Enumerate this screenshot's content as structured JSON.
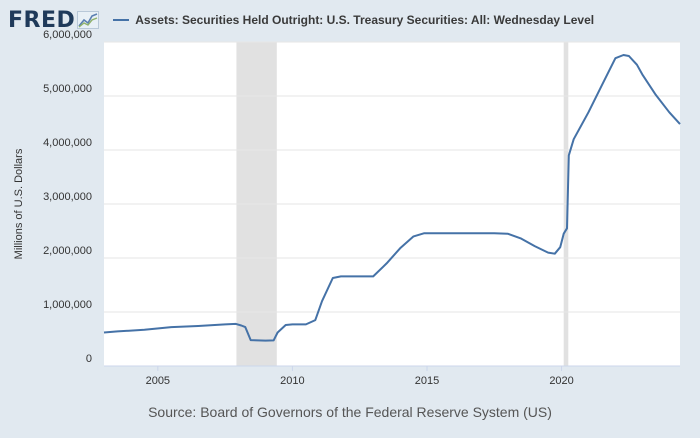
{
  "brand": {
    "name": "FRED"
  },
  "legend": {
    "label": "Assets: Securities Held Outright: U.S. Treasury Securities: All: Wednesday Level"
  },
  "source": "Source: Board of Governors of the Federal Reserve System (US)",
  "colors": {
    "line": "#4572a7",
    "recession": "#e1e1e1",
    "background": "#e1e9f0",
    "plot": "#ffffff",
    "grid": "#e6e6e6"
  },
  "chart_data": {
    "type": "line",
    "title": "Assets: Securities Held Outright: U.S. Treasury Securities: All: Wednesday Level",
    "xlabel": "",
    "ylabel": "Millions of U.S. Dollars",
    "xlim": [
      2003.0,
      2024.4
    ],
    "ylim": [
      0,
      6000000
    ],
    "y_ticks": [
      0,
      1000000,
      2000000,
      3000000,
      4000000,
      5000000,
      6000000
    ],
    "y_tick_labels": [
      "0",
      "1,000,000",
      "2,000,000",
      "3,000,000",
      "4,000,000",
      "5,000,000",
      "6,000,000"
    ],
    "x_ticks": [
      2005,
      2010,
      2015,
      2020
    ],
    "x_tick_labels": [
      "2005",
      "2010",
      "2015",
      "2020"
    ],
    "recessions": [
      [
        2007.92,
        2009.42
      ],
      [
        2020.08,
        2020.25
      ]
    ],
    "series": [
      {
        "name": "Assets: Securities Held Outright: U.S. Treasury Securities: All: Wednesday Level",
        "x": [
          2003.0,
          2003.5,
          2004.5,
          2005.5,
          2006.5,
          2007.5,
          2007.9,
          2008.1,
          2008.25,
          2008.45,
          2009.0,
          2009.3,
          2009.45,
          2009.75,
          2010.0,
          2010.5,
          2010.85,
          2011.1,
          2011.5,
          2011.8,
          2012.1,
          2012.5,
          2013.0,
          2013.5,
          2014.0,
          2014.5,
          2014.9,
          2015.5,
          2016.5,
          2017.5,
          2018.0,
          2018.5,
          2019.0,
          2019.5,
          2019.75,
          2019.95,
          2020.08,
          2020.2,
          2020.27,
          2020.45,
          2021.0,
          2021.5,
          2022.0,
          2022.3,
          2022.5,
          2022.8,
          2023.0,
          2023.5,
          2024.0,
          2024.4
        ],
        "values": [
          620000,
          640000,
          670000,
          720000,
          740000,
          770000,
          780000,
          750000,
          720000,
          480000,
          470000,
          475000,
          620000,
          760000,
          770000,
          770000,
          850000,
          1200000,
          1630000,
          1660000,
          1660000,
          1660000,
          1660000,
          1900000,
          2180000,
          2400000,
          2460000,
          2460000,
          2460000,
          2460000,
          2450000,
          2360000,
          2220000,
          2100000,
          2080000,
          2200000,
          2450000,
          2550000,
          3900000,
          4200000,
          4700000,
          5200000,
          5700000,
          5760000,
          5740000,
          5580000,
          5400000,
          5020000,
          4700000,
          4480000
        ]
      }
    ]
  }
}
